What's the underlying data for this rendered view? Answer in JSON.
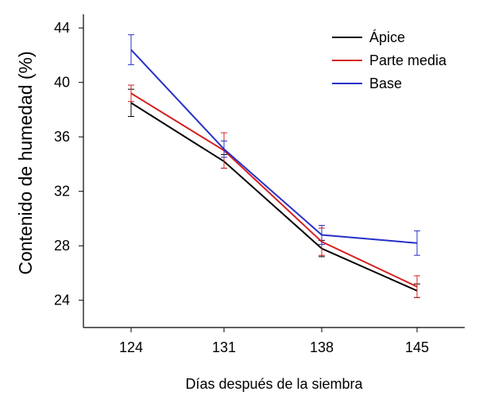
{
  "chart_data": {
    "type": "line",
    "xlabel": "Días después de la siembra",
    "ylabel": "Contenido de humedad (%)",
    "categories": [
      "124",
      "131",
      "138",
      "145"
    ],
    "ylim": [
      22,
      45
    ],
    "yticks": [
      24,
      28,
      32,
      36,
      40,
      44
    ],
    "grid": false,
    "legend_position": "top-right",
    "series": [
      {
        "name": "Ápice",
        "color": "#000000",
        "values": [
          38.5,
          34.2,
          27.8,
          24.7
        ],
        "errors": [
          1.0,
          0.5,
          0.6,
          0.5
        ]
      },
      {
        "name": "Parte media",
        "color": "#d42020",
        "values": [
          39.2,
          35.0,
          28.3,
          25.0
        ],
        "errors": [
          0.6,
          1.3,
          1.0,
          0.8
        ]
      },
      {
        "name": "Base",
        "color": "#2630c8",
        "values": [
          42.4,
          35.1,
          28.8,
          28.2
        ],
        "errors": [
          1.1,
          0.6,
          0.7,
          0.9
        ]
      }
    ]
  }
}
